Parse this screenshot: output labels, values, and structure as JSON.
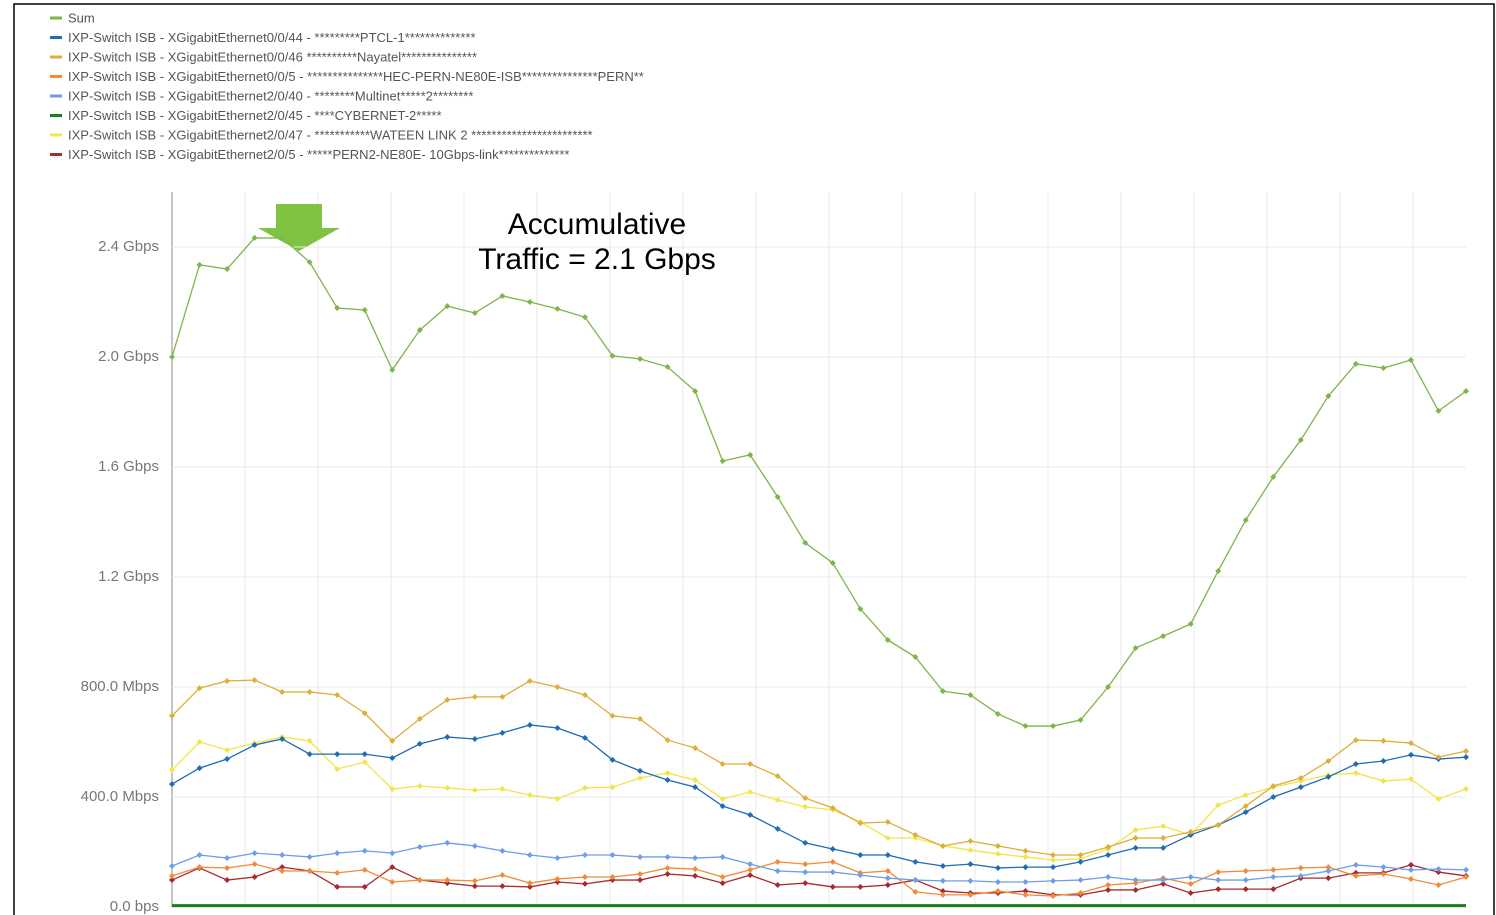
{
  "chart_data": {
    "type": "line",
    "annotation": [
      "Accumulative",
      "Traffic = 2.1 Gbps"
    ],
    "ylim": [
      0,
      2600
    ],
    "yticks": [
      {
        "value": 0,
        "label": "0.0 bps"
      },
      {
        "value": 400,
        "label": "400.0 Mbps"
      },
      {
        "value": 800,
        "label": "800.0 Mbps"
      },
      {
        "value": 1200,
        "label": "1.2 Gbps"
      },
      {
        "value": 1600,
        "label": "1.6 Gbps"
      },
      {
        "value": 2000,
        "label": "2.0 Gbps"
      },
      {
        "value": 2400,
        "label": "2.4 Gbps"
      }
    ],
    "grid": true,
    "legend": "top-left",
    "series": [
      {
        "name": "Sum",
        "color": "#7db54a",
        "values": [
          2000,
          2335,
          2320,
          2433,
          2433,
          2345,
          2178,
          2171,
          1953,
          2098,
          2185,
          2160,
          2222,
          2200,
          2175,
          2145,
          2004,
          1993,
          1964,
          1876,
          1622,
          1644,
          1491,
          1324,
          1251,
          1084,
          971,
          909,
          785,
          771,
          702,
          658,
          658,
          680,
          800,
          942,
          985,
          1029,
          1222,
          1407,
          1564,
          1698,
          1858,
          1975,
          1960,
          1989,
          1804,
          1876
        ]
      },
      {
        "name": "IXP-Switch ISB - XGigabitEthernet0/0/44 - *********PTCL-1**************",
        "color": "#1f6bb5",
        "values": [
          447,
          505,
          538,
          589,
          611,
          556,
          556,
          556,
          542,
          593,
          618,
          611,
          633,
          662,
          651,
          615,
          535,
          495,
          462,
          436,
          367,
          335,
          284,
          233,
          211,
          189,
          189,
          164,
          149,
          156,
          142,
          145,
          145,
          164,
          189,
          215,
          215,
          262,
          298,
          345,
          400,
          436,
          473,
          520,
          531,
          553,
          538,
          545
        ]
      },
      {
        "name": "IXP-Switch ISB - XGigabitEthernet0/0/46 **********Nayatel***************",
        "color": "#dfae3a",
        "values": [
          695,
          796,
          822,
          825,
          782,
          782,
          771,
          705,
          604,
          684,
          753,
          764,
          764,
          822,
          800,
          771,
          695,
          684,
          607,
          578,
          520,
          520,
          476,
          396,
          360,
          305,
          309,
          262,
          222,
          240,
          222,
          204,
          189,
          189,
          218,
          251,
          251,
          273,
          298,
          367,
          440,
          469,
          531,
          607,
          604,
          596,
          545,
          567
        ]
      },
      {
        "name": "IXP-Switch ISB  - XGigabitEthernet0/0/5  - ***************HEC-PERN-NE80E-ISB***************PERN**",
        "color": "#ef8c3a",
        "values": [
          113,
          145,
          142,
          156,
          131,
          131,
          124,
          135,
          91,
          98,
          98,
          95,
          116,
          87,
          102,
          109,
          109,
          120,
          142,
          138,
          109,
          135,
          164,
          156,
          164,
          124,
          131,
          55,
          44,
          44,
          58,
          44,
          40,
          51,
          80,
          87,
          105,
          84,
          127,
          131,
          135,
          142,
          145,
          113,
          120,
          102,
          80,
          109
        ]
      },
      {
        "name": "IXP-Switch ISB - XGigabitEthernet2/0/40 - ********Multinet*****2********",
        "color": "#6f9ee8",
        "values": [
          149,
          189,
          178,
          196,
          189,
          182,
          196,
          204,
          196,
          218,
          233,
          222,
          204,
          189,
          178,
          189,
          189,
          182,
          182,
          178,
          182,
          156,
          131,
          127,
          127,
          116,
          105,
          98,
          95,
          95,
          91,
          91,
          95,
          98,
          109,
          98,
          98,
          109,
          98,
          98,
          109,
          113,
          131,
          153,
          145,
          135,
          138,
          135
        ]
      },
      {
        "name": "IXP-Switch ISB - XGigabitEthernet2/0/45 - ****CYBERNET-2*****",
        "color": "#1b7d1b",
        "values": [
          5,
          5,
          5,
          5,
          5,
          5,
          5,
          5,
          5,
          5,
          5,
          5,
          5,
          5,
          5,
          5,
          5,
          5,
          5,
          5,
          5,
          5,
          5,
          5,
          5,
          5,
          5,
          5,
          5,
          5,
          5,
          5,
          5,
          5,
          5,
          5,
          5,
          5,
          5,
          5,
          5,
          5,
          5,
          5,
          5,
          5,
          5,
          5
        ]
      },
      {
        "name": "IXP-Switch ISB - XGigabitEthernet2/0/47 - ***********WATEEN LINK 2 ************************",
        "color": "#f2e44a",
        "values": [
          498,
          600,
          571,
          596,
          618,
          604,
          502,
          527,
          429,
          440,
          433,
          425,
          429,
          407,
          393,
          433,
          436,
          469,
          487,
          462,
          393,
          418,
          389,
          364,
          353,
          309,
          251,
          251,
          222,
          207,
          193,
          182,
          171,
          175,
          211,
          280,
          294,
          262,
          371,
          407,
          436,
          458,
          480,
          487,
          458,
          465,
          393,
          429
        ]
      },
      {
        "name": "IXP-Switch ISB - XGigabitEthernet2/0/5 - *****PERN2-NE80E- 10Gbps-link**************",
        "color": "#a82a2e",
        "values": [
          98,
          142,
          98,
          109,
          145,
          131,
          73,
          73,
          145,
          98,
          87,
          76,
          76,
          73,
          91,
          84,
          98,
          98,
          120,
          113,
          87,
          116,
          80,
          87,
          73,
          73,
          80,
          98,
          58,
          51,
          51,
          58,
          44,
          44,
          62,
          62,
          84,
          51,
          65,
          65,
          65,
          105,
          105,
          124,
          124,
          153,
          127,
          113
        ]
      }
    ]
  }
}
